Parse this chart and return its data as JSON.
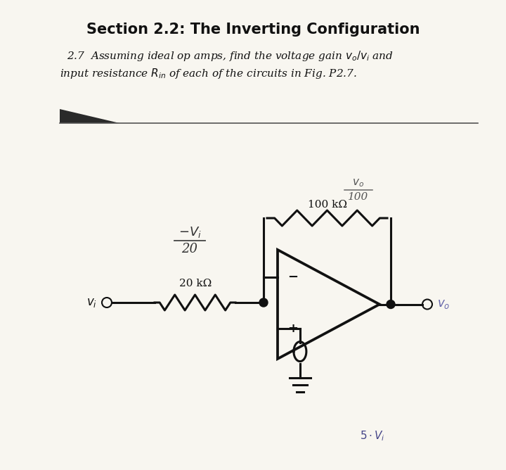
{
  "background_color": "#ffffff",
  "page_color": "#f8f6f0",
  "title_text": "Section 2.2: The Inverting Configuration",
  "title_fontsize": 15,
  "body_fontsize": 11.5,
  "line1": "2.7  Assuming ideal op amps, find the voltage gain $v_o/v_i$ and",
  "line2": "input resistance $R_{in}$ of each of the circuits in Fig. P2.7.",
  "r1_label": "20 kΩ",
  "r2_label": "100 kΩ",
  "vi_label": "$v_i$",
  "vo_label": "$v_o$",
  "minus_label": "−",
  "plus_label": "+",
  "annot_top": "$-V_i$",
  "annot_bot": "20",
  "annot2_top": "$v_o$",
  "annot2_bot": "100",
  "annot3": "$5 \\cdot V_i$"
}
